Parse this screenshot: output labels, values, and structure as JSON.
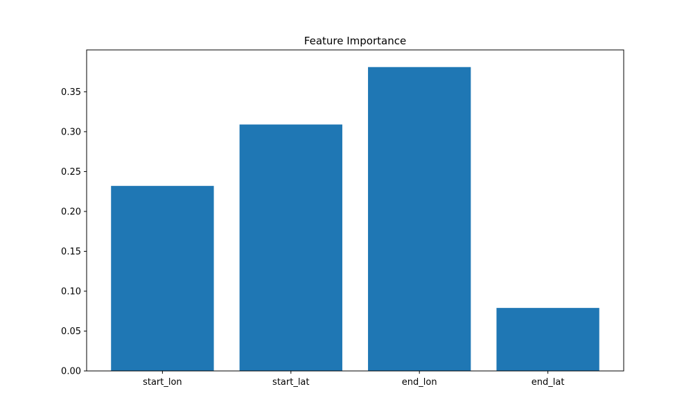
{
  "chart_data": {
    "type": "bar",
    "title": "Feature Importance",
    "xlabel": "",
    "ylabel": "",
    "categories": [
      "start_lon",
      "start_lat",
      "end_lon",
      "end_lat"
    ],
    "values": [
      0.232,
      0.309,
      0.381,
      0.079
    ],
    "ylim": [
      0,
      0.4
    ],
    "yticks": [
      0.0,
      0.05,
      0.1,
      0.15,
      0.2,
      0.25,
      0.3,
      0.35
    ],
    "ytick_labels": [
      "0.00",
      "0.05",
      "0.10",
      "0.15",
      "0.20",
      "0.25",
      "0.30",
      "0.35"
    ],
    "bar_color": "#1f77b4",
    "grid": false,
    "legend": "none"
  }
}
